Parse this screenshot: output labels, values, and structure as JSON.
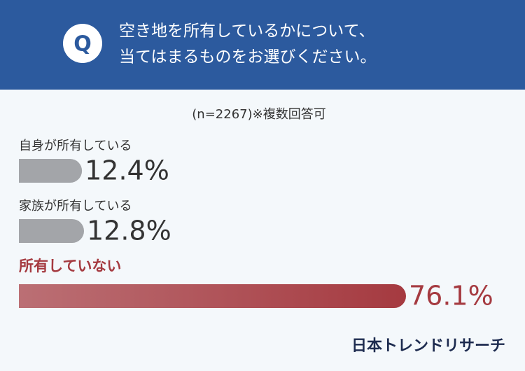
{
  "chart_data": {
    "type": "bar",
    "question_mark": "Q",
    "title": [
      "空き地を所有しているかについて、",
      "当てはまるものをお選びください。"
    ],
    "subtitle": "(n=2267)※複数回答可",
    "categories": [
      "自身が所有している",
      "家族が所有している",
      "所有していない"
    ],
    "values": [
      12.4,
      12.8,
      76.1
    ],
    "value_labels": [
      "12.4%",
      "12.8%",
      "76.1%"
    ],
    "colors": [
      "#a3a5a9",
      "#a3a5a9",
      "#a53a40"
    ],
    "label_colors": [
      "#333333",
      "#333333",
      "#a53a40"
    ],
    "source": "日本トレンドリサーチ"
  }
}
